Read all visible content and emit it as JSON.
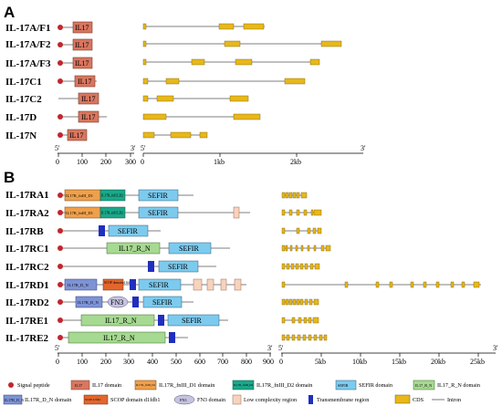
{
  "panels": {
    "a": "A",
    "b": "B"
  },
  "colors": {
    "signal": "#c0272d",
    "il17": "#d9765f",
    "fn1": "#f0a04b",
    "fn2": "#1aa88a",
    "sefir": "#7ccbef",
    "il17rn": "#a6d991",
    "il17rdn": "#7e93d6",
    "scop": "#e3662c",
    "fn3": "#c5c3e0",
    "lowc": "#f7d3bd",
    "tm": "#1f2fbf",
    "cds": "#e8b81a"
  },
  "panelA": {
    "genes": [
      "IL-17A/F1",
      "IL-17A/F2",
      "IL-17A/F3",
      "IL-17C1",
      "IL-17C2",
      "IL-17D",
      "IL-17N"
    ],
    "domain_label": "IL17",
    "protein_axis": {
      "start": "5'",
      "end": "3'",
      "ticks": [
        "0",
        "100",
        "200",
        "300"
      ]
    },
    "gene_axis": {
      "start": "5'",
      "end": "3'",
      "ticks": [
        "0",
        "1kb",
        "2kb"
      ]
    }
  },
  "panelB": {
    "genes": [
      "IL-17RA1",
      "IL-17RA2",
      "IL-17RB",
      "IL-17RC1",
      "IL-17RC2",
      "IL-17RD1",
      "IL-17RD2",
      "IL-17RE1",
      "IL-17RE2"
    ],
    "labels": {
      "sefir": "SEFIR",
      "il17rn": "IL17_R_N",
      "fn1": "IL17R_fnIII_D1",
      "fn2": "IL17R_fnIII_D2",
      "il17rdn": "IL17R_D_N",
      "scop": "SCOP domain d1fdb1",
      "fn3": "FN3"
    },
    "protein_axis": {
      "start": "5'",
      "end": "3'",
      "ticks": [
        "0",
        "100",
        "200",
        "300",
        "400",
        "500",
        "600",
        "700",
        "800",
        "900"
      ]
    },
    "gene_axis": {
      "start": "5'",
      "end": "3'",
      "ticks": [
        "0",
        "5kb",
        "10kb",
        "15kb",
        "20kb",
        "25kb"
      ]
    }
  },
  "legend": {
    "signal": "Signal peptide",
    "il17_box": "IL17",
    "il17": "IL17 domain",
    "fn1_box": "IL17R_fnIII_D1",
    "fn1": "IL17R_fnIII_D1 domain",
    "fn2_box": "IL17R_fnIII_D2",
    "fn2": "IL17R_fnIII_D2 domain",
    "sefir_box": "SEFIR",
    "sefir": "SEFIR domain",
    "il17rn_box": "IL17_R_N",
    "il17rn": "IL17_R_N domain",
    "il17rdn_box": "IL17R_D_N",
    "il17rdn": "IL17R_D_N domain",
    "scop_box": "SCOP d1fdb1",
    "scop": "SCOP domain d1fdb1",
    "fn3_box": "FN3",
    "fn3": "FN3 domain",
    "lowc": "Low complexity region",
    "tm": "Transmembrane region",
    "cds": "CDS",
    "intron": "Intron"
  }
}
